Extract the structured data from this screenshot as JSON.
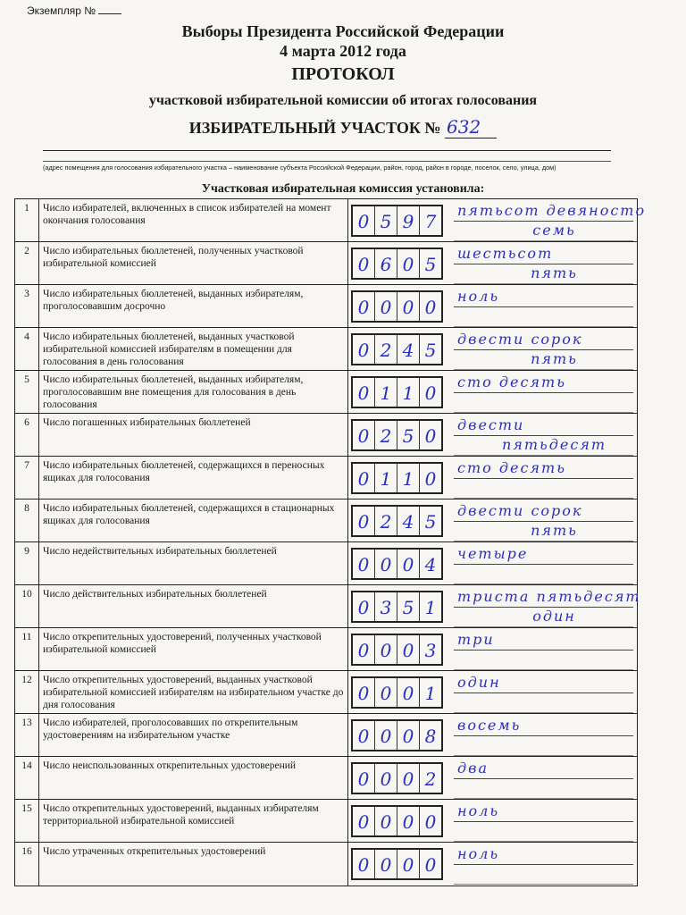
{
  "header": {
    "copy_label": "Экземпляр №",
    "title_line1": "Выборы Президента Российской Федерации",
    "title_line2": "4 марта 2012 года",
    "protocol": "ПРОТОКОЛ",
    "subtitle": "участковой избирательной комиссии об итогах голосования",
    "precinct_label": "ИЗБИРАТЕЛЬНЫЙ УЧАСТОК №",
    "precinct_number": "632",
    "address_note": "(адрес помещения для голосования избирательного участка – наименование субъекта Российской Федерации, район, город, район в городе, поселок, село, улица, дом)",
    "established": "Участковая избирательная комиссия установила:"
  },
  "ink_color": "#2a2fc0",
  "rows": [
    {
      "n": "1",
      "label": "Число избирателей, включенных в список избирателей на момент окончания голосования",
      "digits": [
        "0",
        "5",
        "9",
        "7"
      ],
      "words1": "пятьсот девяносто",
      "words2": "семь"
    },
    {
      "n": "2",
      "label": "Число избирательных бюллетеней, полученных участковой избирательной комиссией",
      "digits": [
        "0",
        "6",
        "0",
        "5"
      ],
      "words1": "шестьсот",
      "words2": "пять"
    },
    {
      "n": "3",
      "label": "Число избирательных бюллетеней, выданных избирателям, проголосовавшим досрочно",
      "digits": [
        "0",
        "0",
        "0",
        "0"
      ],
      "words1": "ноль",
      "words2": ""
    },
    {
      "n": "4",
      "label": "Число избирательных бюллетеней, выданных участковой избирательной комиссией избирателям в помещении для голосования в день голосования",
      "digits": [
        "0",
        "2",
        "4",
        "5"
      ],
      "words1": "двести сорок",
      "words2": "пять"
    },
    {
      "n": "5",
      "label": "Число избирательных бюллетеней, выданных избирателям, проголосовавшим вне помещения для голосования в день голосования",
      "digits": [
        "0",
        "1",
        "1",
        "0"
      ],
      "words1": "сто десять",
      "words2": ""
    },
    {
      "n": "6",
      "label": "Число погашенных избирательных бюллетеней",
      "digits": [
        "0",
        "2",
        "5",
        "0"
      ],
      "words1": "двести",
      "words2": "пятьдесят"
    },
    {
      "n": "7",
      "label": "Число избирательных бюллетеней, содержащихся в переносных ящиках для голосования",
      "digits": [
        "0",
        "1",
        "1",
        "0"
      ],
      "words1": "сто десять",
      "words2": ""
    },
    {
      "n": "8",
      "label": "Число избирательных бюллетеней, содержащихся в стационарных ящиках для голосования",
      "digits": [
        "0",
        "2",
        "4",
        "5"
      ],
      "words1": "двести сорок",
      "words2": "пять"
    },
    {
      "n": "9",
      "label": "Число недействительных избирательных бюллетеней",
      "digits": [
        "0",
        "0",
        "0",
        "4"
      ],
      "words1": "четыре",
      "words2": ""
    },
    {
      "n": "10",
      "label": "Число действительных избирательных бюллетеней",
      "digits": [
        "0",
        "3",
        "5",
        "1"
      ],
      "words1": "триста пятьдесят",
      "words2": "один"
    },
    {
      "n": "11",
      "label": "Число открепительных удостоверений, полученных участковой избирательной комиссией",
      "digits": [
        "0",
        "0",
        "0",
        "3"
      ],
      "words1": "три",
      "words2": ""
    },
    {
      "n": "12",
      "label": "Число открепительных удостоверений, выданных участковой избирательной комиссией избирателям на избирательном участке до дня голосования",
      "digits": [
        "0",
        "0",
        "0",
        "1"
      ],
      "words1": "один",
      "words2": ""
    },
    {
      "n": "13",
      "label": "Число избирателей, проголосовавших по открепительным удостоверениям на избирательном участке",
      "digits": [
        "0",
        "0",
        "0",
        "8"
      ],
      "words1": "восемь",
      "words2": ""
    },
    {
      "n": "14",
      "label": "Число неиспользованных открепительных удостоверений",
      "digits": [
        "0",
        "0",
        "0",
        "2"
      ],
      "words1": "два",
      "words2": ""
    },
    {
      "n": "15",
      "label": "Число открепительных удостоверений, выданных избирателям территориальной избирательной комиссией",
      "digits": [
        "0",
        "0",
        "0",
        "0"
      ],
      "words1": "ноль",
      "words2": ""
    },
    {
      "n": "16",
      "label": "Число утраченных открепительных удостоверений",
      "digits": [
        "0",
        "0",
        "0",
        "0"
      ],
      "words1": "ноль",
      "words2": ""
    }
  ]
}
